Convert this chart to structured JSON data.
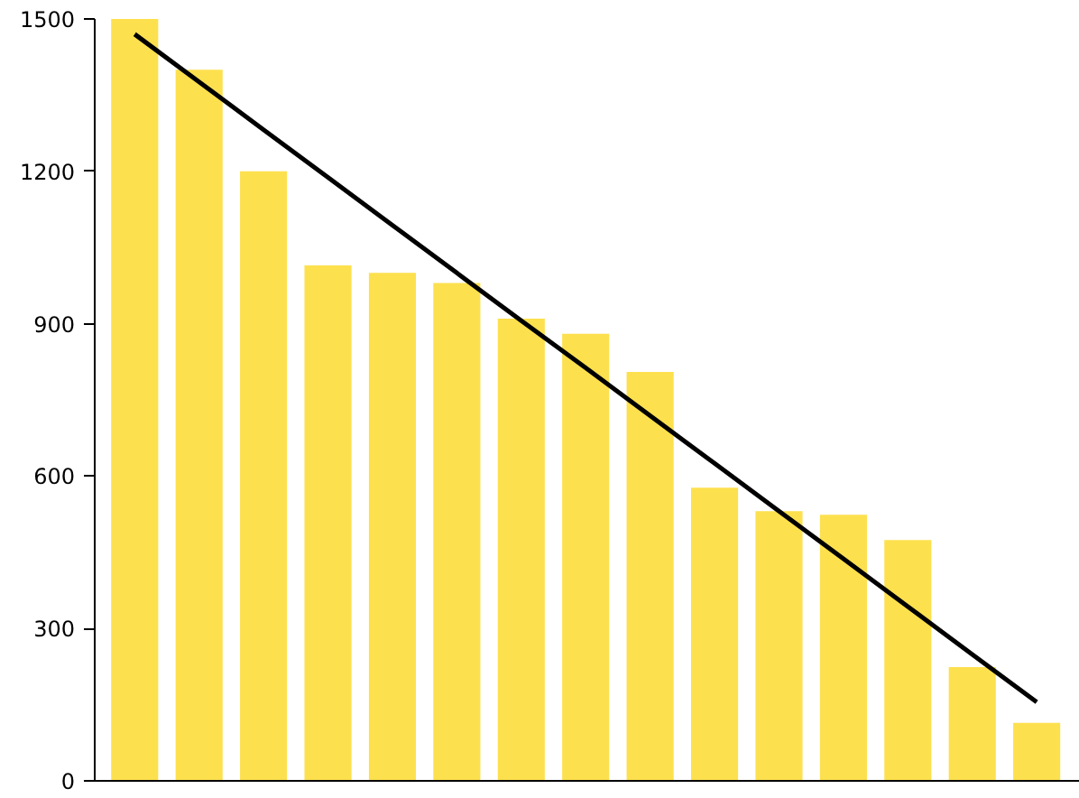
{
  "chart_data": {
    "type": "bar",
    "categories": [
      null,
      null,
      null,
      null,
      null,
      null,
      null,
      null,
      null,
      null,
      null,
      null,
      null,
      null,
      null
    ],
    "series": [
      {
        "color": "#fde04e",
        "values": [
          1500,
          1400,
          1200,
          1015,
          1000,
          980,
          910,
          880,
          805,
          577,
          531,
          524,
          474,
          224,
          114
        ]
      },
      {
        "type": "line",
        "color": "#000000",
        "values": [
          1470,
          1376,
          1282,
          1188,
          1094,
          1000,
          906,
          813,
          719,
          625,
          531,
          437,
          343,
          249,
          155
        ]
      }
    ],
    "ylim": [
      0,
      1500
    ],
    "yticks": [
      0,
      300,
      600,
      900,
      1200,
      1500
    ],
    "grid": false,
    "tick_labels": "y"
  }
}
